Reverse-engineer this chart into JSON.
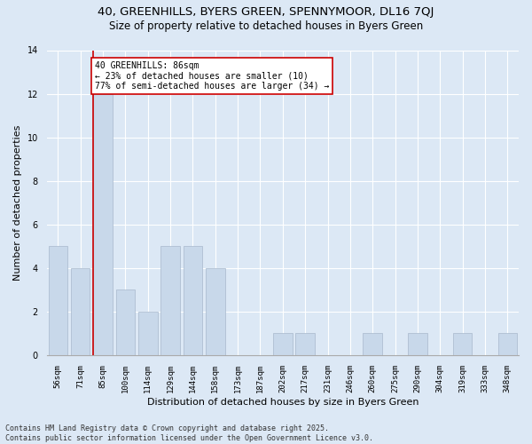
{
  "title1": "40, GREENHILLS, BYERS GREEN, SPENNYMOOR, DL16 7QJ",
  "title2": "Size of property relative to detached houses in Byers Green",
  "xlabel": "Distribution of detached houses by size in Byers Green",
  "ylabel": "Number of detached properties",
  "categories": [
    "56sqm",
    "71sqm",
    "85sqm",
    "100sqm",
    "114sqm",
    "129sqm",
    "144sqm",
    "158sqm",
    "173sqm",
    "187sqm",
    "202sqm",
    "217sqm",
    "231sqm",
    "246sqm",
    "260sqm",
    "275sqm",
    "290sqm",
    "304sqm",
    "319sqm",
    "333sqm",
    "348sqm"
  ],
  "values": [
    5,
    4,
    12,
    3,
    2,
    5,
    5,
    4,
    0,
    0,
    1,
    1,
    0,
    0,
    1,
    0,
    1,
    0,
    1,
    0,
    1
  ],
  "bar_color": "#c8d8ea",
  "bar_edge_color": "#a8b8cc",
  "highlight_bar_index": 2,
  "highlight_line_color": "#cc0000",
  "annotation_text": "40 GREENHILLS: 86sqm\n← 23% of detached houses are smaller (10)\n77% of semi-detached houses are larger (34) →",
  "annotation_box_color": "#ffffff",
  "annotation_box_edge_color": "#cc0000",
  "ylim": [
    0,
    14
  ],
  "yticks": [
    0,
    2,
    4,
    6,
    8,
    10,
    12,
    14
  ],
  "background_color": "#dce8f5",
  "footer_text": "Contains HM Land Registry data © Crown copyright and database right 2025.\nContains public sector information licensed under the Open Government Licence v3.0.",
  "title_fontsize": 9.5,
  "subtitle_fontsize": 8.5,
  "annotation_fontsize": 7,
  "footer_fontsize": 6,
  "ylabel_fontsize": 8,
  "xlabel_fontsize": 8,
  "tick_fontsize": 6.5
}
